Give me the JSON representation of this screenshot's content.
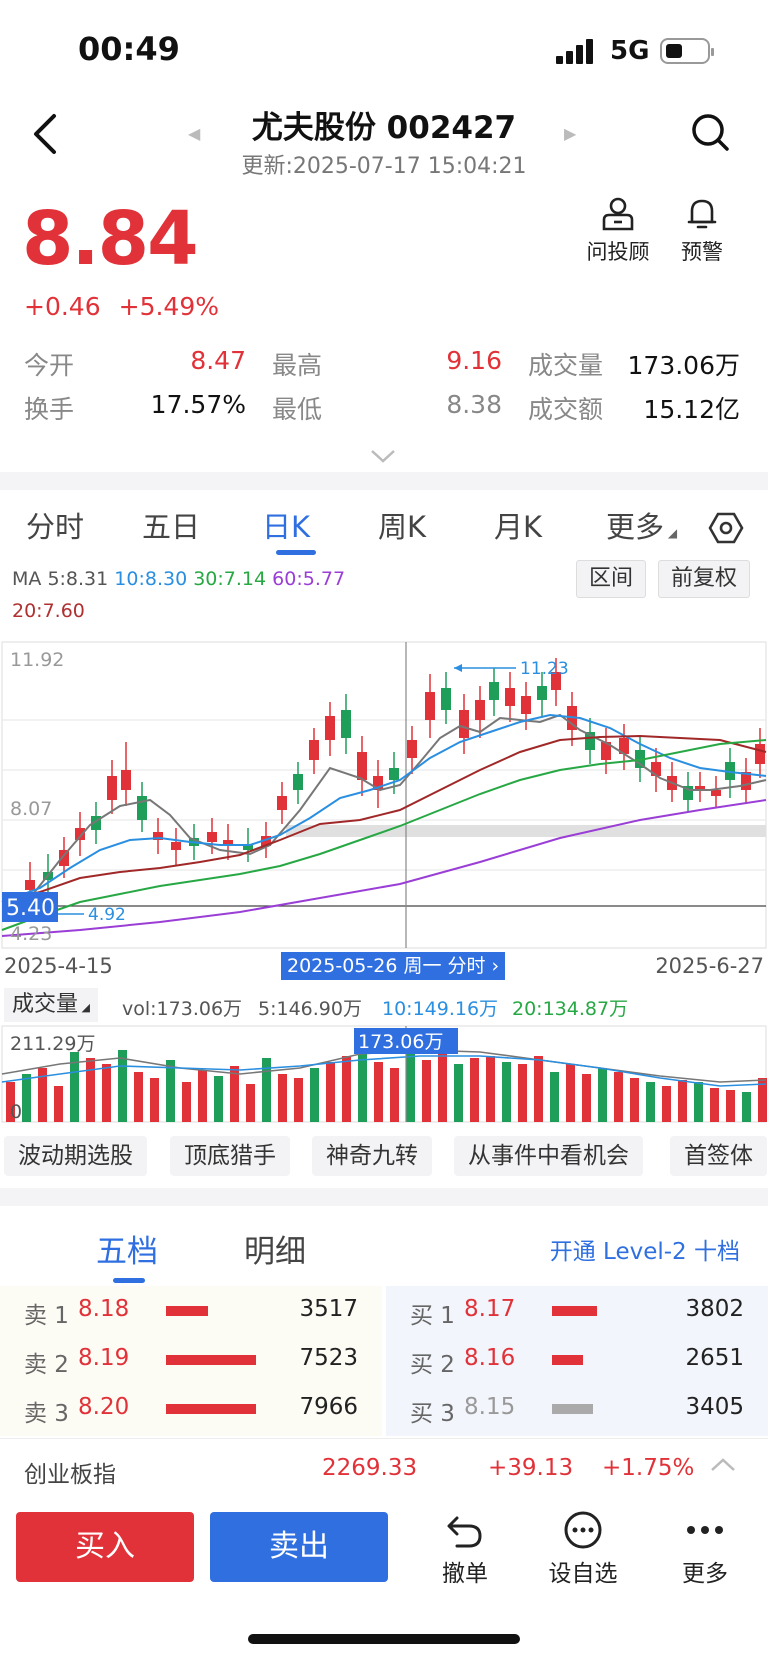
{
  "status_bar": {
    "time": "00:49",
    "network": "5G"
  },
  "header": {
    "title": "尤夫股份 002427",
    "updated": "更新:2025-07-17 15:04:21"
  },
  "quote": {
    "price": "8.84",
    "change": "+0.46",
    "change_pct": "+5.49%"
  },
  "top_actions": {
    "advisor": "问投顾",
    "alert": "预警"
  },
  "stats": {
    "open_label": "今开",
    "open": "8.47",
    "high_label": "最高",
    "high": "9.16",
    "volume_label": "成交量",
    "volume": "173.06万",
    "turnover_label": "换手",
    "turnover": "17.57%",
    "low_label": "最低",
    "low": "8.38",
    "amount_label": "成交额",
    "amount": "15.12亿"
  },
  "chart_tabs": [
    "分时",
    "五日",
    "日K",
    "周K",
    "月K",
    "更多"
  ],
  "ma_line": {
    "prefix": "MA",
    "ma5": "5:8.31",
    "ma10": "10:8.30",
    "ma30": "30:7.14",
    "ma60": "60:5.77",
    "ma20": "20:7.60"
  },
  "chart_buttons": {
    "range": "区间",
    "adjust": "前复权"
  },
  "kline": {
    "y_top": "11.92",
    "y_mid": "8.07",
    "y_low": "4.23",
    "cursor_price": "5.40",
    "min_label": "4.92",
    "max_label": "11.23",
    "date_start": "2025-4-15",
    "date_end": "2025-6-27",
    "cursor_date": "2025-05-26 周一 分时",
    "colors": {
      "up": "#e03238",
      "down": "#1f9e5a",
      "ma5": "#777777",
      "ma10": "#2a8fe0",
      "ma20": "#a02828",
      "ma30": "#27a844",
      "ma60": "#9a3ed6"
    }
  },
  "volume": {
    "label": "成交量",
    "vol": "vol:173.06万",
    "ma5": "5:146.90万",
    "ma10": "10:149.16万",
    "ma20": "20:134.87万",
    "y_top": "211.29万",
    "y_zero": "0",
    "cursor_value": "173.06万"
  },
  "chips": [
    "波动期选股",
    "顶底猎手",
    "神奇九转",
    "从事件中看机会",
    "首签体"
  ],
  "order_tabs": {
    "five": "五档",
    "detail": "明细",
    "level2": "开通 Level-2 十档"
  },
  "order_book": {
    "sell": [
      {
        "label": "卖 1",
        "price": "8.18",
        "vol": "3517",
        "bar": 0.47
      },
      {
        "label": "卖 2",
        "price": "8.19",
        "vol": "7523",
        "bar": 1.0
      },
      {
        "label": "卖 3",
        "price": "8.20",
        "vol": "7966",
        "bar": 1.0
      }
    ],
    "buy": [
      {
        "label": "买 1",
        "price": "8.17",
        "vol": "3802",
        "bar": 0.5
      },
      {
        "label": "买 2",
        "price": "8.16",
        "vol": "2651",
        "bar": 0.35
      },
      {
        "label": "买 3",
        "price": "8.15",
        "vol": "3405",
        "bar": 0.45
      }
    ]
  },
  "index_bar": {
    "name": "创业板指",
    "value": "2269.33",
    "change": "+39.13",
    "change_pct": "+1.75%"
  },
  "bottom": {
    "buy": "买入",
    "sell": "卖出",
    "cancel": "撤单",
    "favorite": "设自选",
    "more": "更多"
  }
}
